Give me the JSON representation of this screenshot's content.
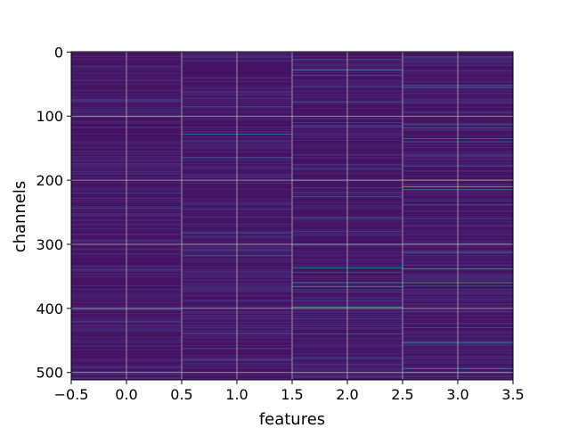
{
  "chart_data": {
    "type": "heatmap",
    "colormap": "viridis",
    "xlabel": "features",
    "ylabel": "channels",
    "x_columns": [
      0,
      1,
      2,
      3
    ],
    "xlim": [
      -0.5,
      3.5
    ],
    "ylim": [
      511.5,
      -0.5
    ],
    "y_inverted": true,
    "n_channels": 512,
    "grid": true,
    "x_ticks": [
      {
        "value": -0.5,
        "label": "−0.5"
      },
      {
        "value": 0.0,
        "label": "0.0"
      },
      {
        "value": 0.5,
        "label": "0.5"
      },
      {
        "value": 1.0,
        "label": "1.0"
      },
      {
        "value": 1.5,
        "label": "1.5"
      },
      {
        "value": 2.0,
        "label": "2.0"
      },
      {
        "value": 2.5,
        "label": "2.5"
      },
      {
        "value": 3.0,
        "label": "3.0"
      },
      {
        "value": 3.5,
        "label": "3.5"
      }
    ],
    "y_ticks": [
      {
        "value": 0,
        "label": "0"
      },
      {
        "value": 100,
        "label": "100"
      },
      {
        "value": 200,
        "label": "200"
      },
      {
        "value": 300,
        "label": "300"
      },
      {
        "value": 400,
        "label": "400"
      },
      {
        "value": 500,
        "label": "500"
      }
    ],
    "value_range": [
      0,
      1
    ],
    "background_level": 0.04,
    "highlights": [
      {
        "feature": 0,
        "channels": [
          {
            "ch": 92,
            "v": 0.22
          },
          {
            "ch": 100,
            "v": 0.2
          },
          {
            "ch": 155,
            "v": 0.18
          },
          {
            "ch": 220,
            "v": 0.22
          },
          {
            "ch": 228,
            "v": 0.2
          },
          {
            "ch": 244,
            "v": 0.3
          },
          {
            "ch": 315,
            "v": 0.2
          },
          {
            "ch": 346,
            "v": 0.18
          },
          {
            "ch": 370,
            "v": 0.2
          },
          {
            "ch": 402,
            "v": 0.36
          },
          {
            "ch": 435,
            "v": 0.2
          },
          {
            "ch": 500,
            "v": 0.22
          }
        ]
      },
      {
        "feature": 1,
        "channels": [
          {
            "ch": 85,
            "v": 0.22
          },
          {
            "ch": 128,
            "v": 0.5
          },
          {
            "ch": 165,
            "v": 0.32
          },
          {
            "ch": 200,
            "v": 0.2
          },
          {
            "ch": 282,
            "v": 0.36
          },
          {
            "ch": 300,
            "v": 0.22
          },
          {
            "ch": 318,
            "v": 0.34
          },
          {
            "ch": 440,
            "v": 0.22
          },
          {
            "ch": 462,
            "v": 0.2
          },
          {
            "ch": 480,
            "v": 0.22
          }
        ]
      },
      {
        "feature": 2,
        "channels": [
          {
            "ch": 12,
            "v": 0.3
          },
          {
            "ch": 28,
            "v": 0.48
          },
          {
            "ch": 36,
            "v": 0.32
          },
          {
            "ch": 78,
            "v": 0.36
          },
          {
            "ch": 110,
            "v": 0.22
          },
          {
            "ch": 160,
            "v": 0.2
          },
          {
            "ch": 182,
            "v": 0.26
          },
          {
            "ch": 212,
            "v": 0.28
          },
          {
            "ch": 226,
            "v": 0.4
          },
          {
            "ch": 258,
            "v": 0.38
          },
          {
            "ch": 280,
            "v": 0.22
          },
          {
            "ch": 300,
            "v": 0.22
          },
          {
            "ch": 337,
            "v": 0.52
          },
          {
            "ch": 344,
            "v": 0.3
          },
          {
            "ch": 360,
            "v": 0.55
          },
          {
            "ch": 366,
            "v": 0.6
          },
          {
            "ch": 398,
            "v": 0.62
          },
          {
            "ch": 416,
            "v": 0.3
          },
          {
            "ch": 440,
            "v": 0.36
          },
          {
            "ch": 478,
            "v": 0.3
          }
        ]
      },
      {
        "feature": 3,
        "channels": [
          {
            "ch": 8,
            "v": 0.3
          },
          {
            "ch": 52,
            "v": 0.45
          },
          {
            "ch": 55,
            "v": 0.3
          },
          {
            "ch": 95,
            "v": 0.26
          },
          {
            "ch": 113,
            "v": 0.34
          },
          {
            "ch": 118,
            "v": 0.45
          },
          {
            "ch": 135,
            "v": 0.52
          },
          {
            "ch": 140,
            "v": 0.42
          },
          {
            "ch": 178,
            "v": 0.3
          },
          {
            "ch": 200,
            "v": 1.0
          },
          {
            "ch": 210,
            "v": 0.8
          },
          {
            "ch": 215,
            "v": 0.55
          },
          {
            "ch": 238,
            "v": 0.32
          },
          {
            "ch": 260,
            "v": 0.26
          },
          {
            "ch": 313,
            "v": 0.36
          },
          {
            "ch": 338,
            "v": 0.62
          },
          {
            "ch": 360,
            "v": 0.7
          },
          {
            "ch": 365,
            "v": 0.3
          },
          {
            "ch": 400,
            "v": 0.42
          },
          {
            "ch": 430,
            "v": 0.3
          },
          {
            "ch": 452,
            "v": 0.38
          },
          {
            "ch": 454,
            "v": 0.42
          },
          {
            "ch": 494,
            "v": 0.52
          },
          {
            "ch": 506,
            "v": 0.3
          }
        ]
      }
    ]
  }
}
